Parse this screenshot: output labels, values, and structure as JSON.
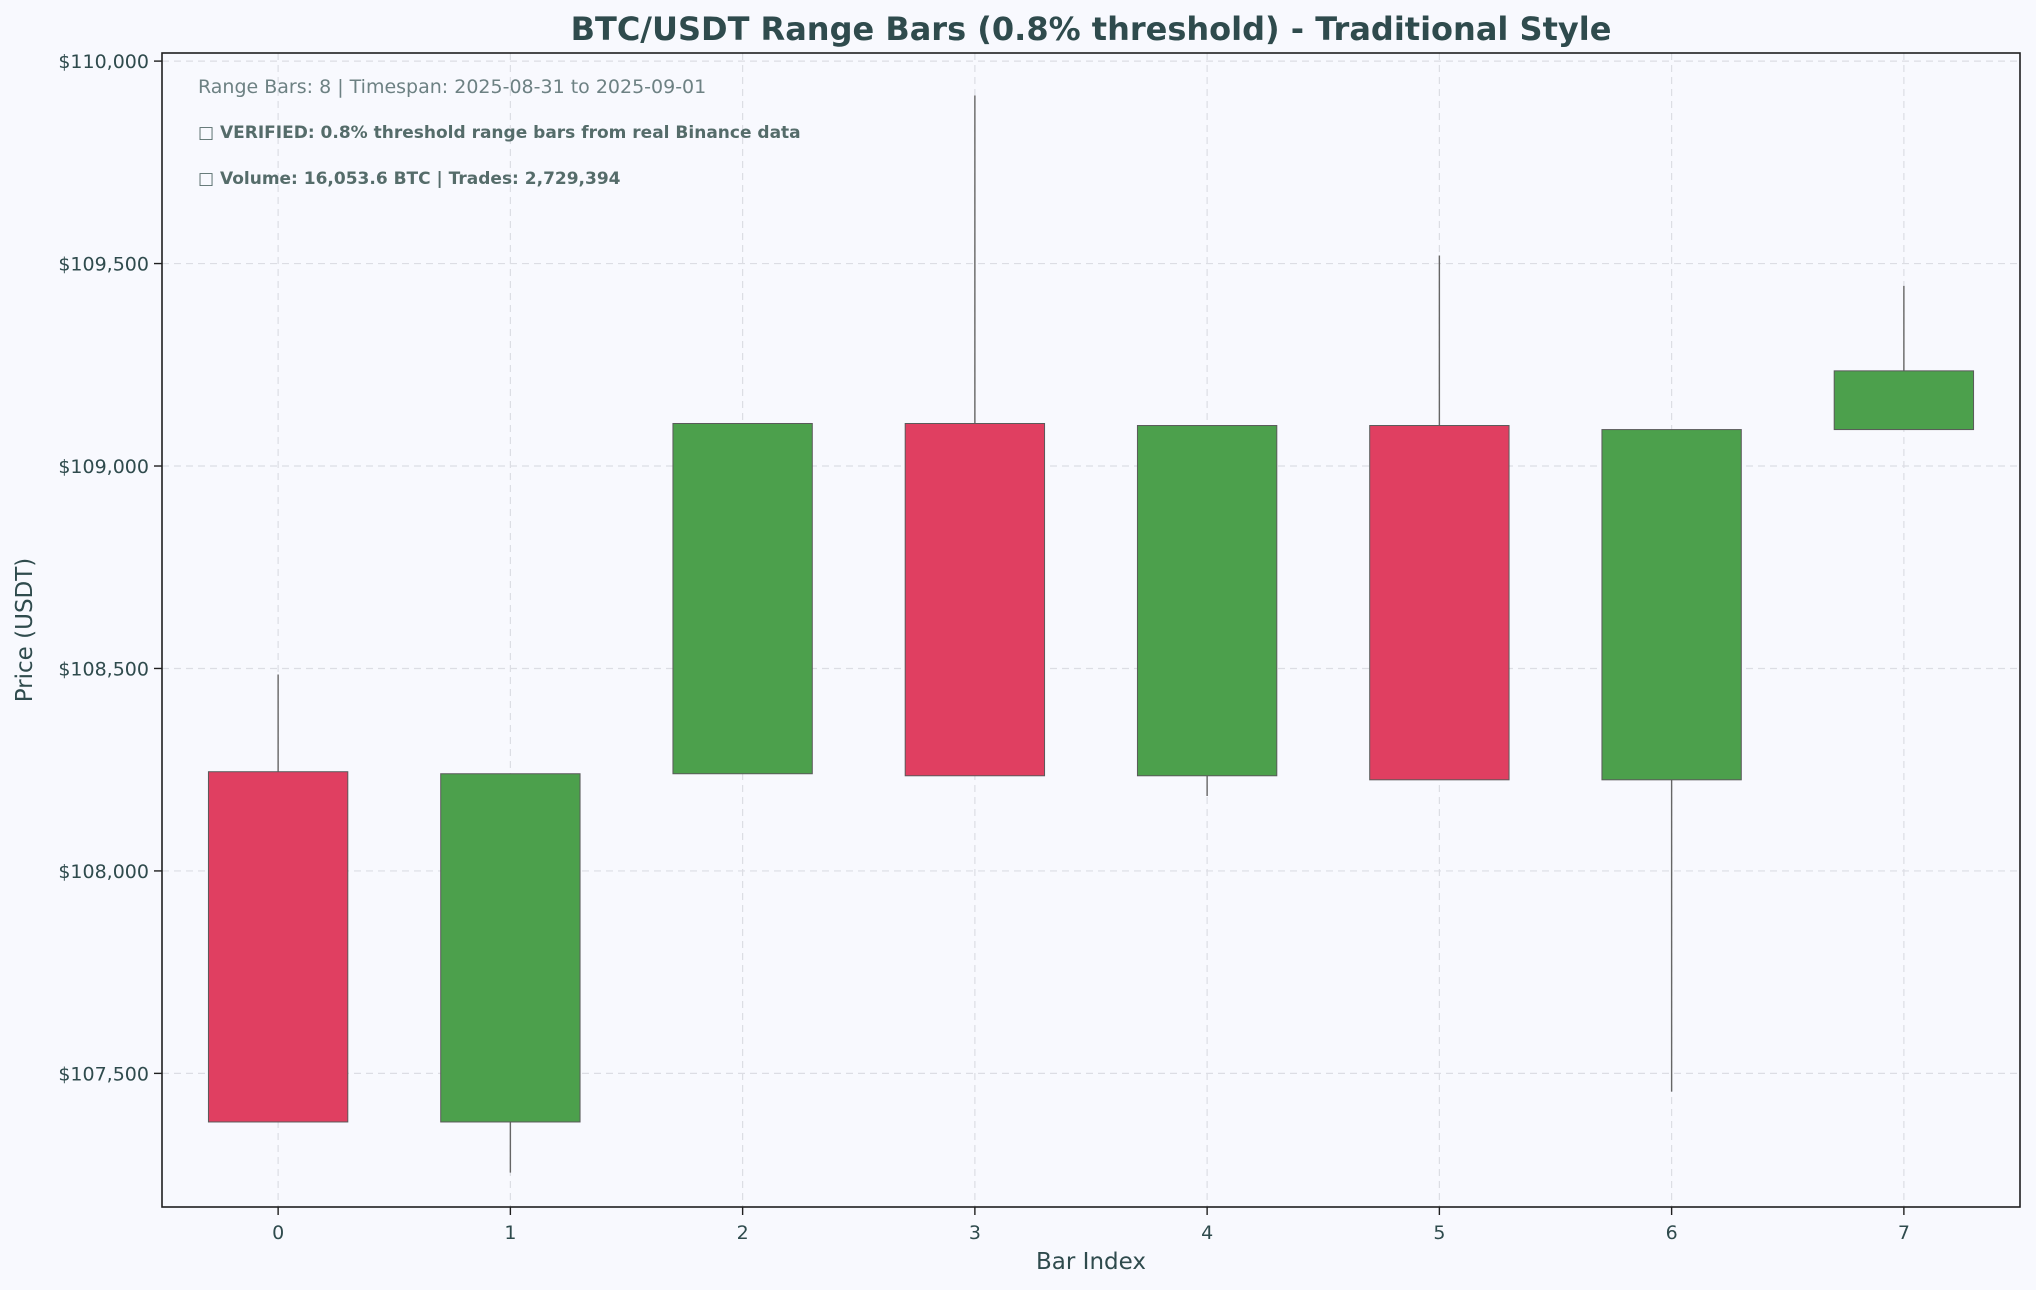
{
  "chart_data": {
    "type": "candlestick",
    "title": "BTC/USDT Range Bars (0.8% threshold) - Traditional Style",
    "xlabel": "Bar Index",
    "ylabel": "Price (USDT)",
    "categories": [
      "0",
      "1",
      "2",
      "3",
      "4",
      "5",
      "6",
      "7"
    ],
    "ylim": [
      107170,
      110020
    ],
    "xlim": [
      -0.5,
      7.5
    ],
    "yticks": [
      107500,
      108000,
      108500,
      109000,
      109500,
      110000
    ],
    "ytick_labels": [
      "$107,500",
      "$108,000",
      "$108,500",
      "$109,000",
      "$109,500",
      "$110,000"
    ],
    "grid": true,
    "bars": [
      {
        "index": 0,
        "open": 108245,
        "high": 108485,
        "low": 107380,
        "close": 107380,
        "direction": "down"
      },
      {
        "index": 1,
        "open": 107380,
        "high": 108240,
        "low": 107255,
        "close": 108240,
        "direction": "up"
      },
      {
        "index": 2,
        "open": 108240,
        "high": 109105,
        "low": 108240,
        "close": 109105,
        "direction": "up"
      },
      {
        "index": 3,
        "open": 109105,
        "high": 109915,
        "low": 108235,
        "close": 108235,
        "direction": "down"
      },
      {
        "index": 4,
        "open": 108235,
        "high": 109100,
        "low": 108185,
        "close": 109100,
        "direction": "up"
      },
      {
        "index": 5,
        "open": 109100,
        "high": 109520,
        "low": 108225,
        "close": 108225,
        "direction": "down"
      },
      {
        "index": 6,
        "open": 108225,
        "high": 109090,
        "low": 107455,
        "close": 109090,
        "direction": "up"
      },
      {
        "index": 7,
        "open": 109090,
        "high": 109445,
        "low": 109090,
        "close": 109235,
        "direction": "up"
      }
    ],
    "annotations": [
      "Range Bars: 8 | Timespan: 2025-08-31 to 2025-09-01",
      "□ VERIFIED: 0.8% threshold range bars from real Binance data",
      "□ Volume: 16,053.6 BTC | Trades: 2,729,394"
    ],
    "colors": {
      "up": "#4ca04c",
      "down": "#e03f61",
      "edge": "#5a5a5a",
      "wick": "#666666",
      "background": "#f8f9fe",
      "grid": "#dcdde4",
      "text": "#2f4b4d",
      "annotation_primary": "#6d8183",
      "annotation_secondary": "#556c6a"
    }
  }
}
